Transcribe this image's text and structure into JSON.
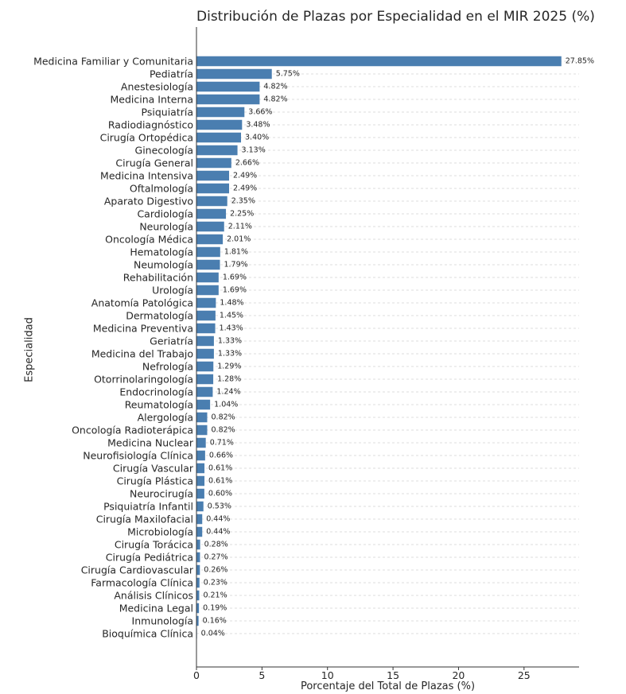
{
  "chart_data": {
    "type": "bar",
    "orientation": "horizontal",
    "title": "Distribución de Plazas por Especialidad en el MIR 2025 (%)",
    "xlabel": "Porcentaje del Total de Plazas (%)",
    "ylabel": "Especialidad",
    "xlim": [
      0,
      29.2
    ],
    "xticks": [
      0,
      5,
      10,
      15,
      20,
      25
    ],
    "grid": "horizontal dashed",
    "bar_color": "#4a7eb0",
    "categories": [
      "Medicina Familiar y Comunitaria",
      "Pediatría",
      "Anestesiología",
      "Medicina Interna",
      "Psiquiatría",
      "Radiodiagnóstico",
      "Cirugía Ortopédica",
      "Ginecología",
      "Cirugía General",
      "Medicina Intensiva",
      "Oftalmología",
      "Aparato Digestivo",
      "Cardiología",
      "Neurología",
      "Oncología Médica",
      "Hematología",
      "Neumología",
      "Rehabilitación",
      "Urología",
      "Anatomía Patológica",
      "Dermatología",
      "Medicina Preventiva",
      "Geriatría",
      "Medicina del Trabajo",
      "Nefrología",
      "Otorrinolaringología",
      "Endocrinología",
      "Reumatología",
      "Alergología",
      "Oncología Radioterápica",
      "Medicina Nuclear",
      "Neurofisiología Clínica",
      "Cirugía Vascular",
      "Cirugía Plástica",
      "Neurocirugía",
      "Psiquiatría Infantil",
      "Cirugía Maxilofacial",
      "Microbiología",
      "Cirugía Torácica",
      "Cirugía Pediátrica",
      "Cirugía Cardiovascular",
      "Farmacología Clínica",
      "Análisis Clínicos",
      "Medicina Legal",
      "Inmunología",
      "Bioquímica Clínica"
    ],
    "values": [
      27.85,
      5.75,
      4.82,
      4.82,
      3.66,
      3.48,
      3.4,
      3.13,
      2.66,
      2.49,
      2.49,
      2.35,
      2.25,
      2.11,
      2.01,
      1.81,
      1.79,
      1.69,
      1.69,
      1.48,
      1.45,
      1.43,
      1.33,
      1.33,
      1.29,
      1.28,
      1.24,
      1.04,
      0.82,
      0.82,
      0.71,
      0.66,
      0.61,
      0.61,
      0.6,
      0.53,
      0.44,
      0.44,
      0.28,
      0.27,
      0.26,
      0.23,
      0.21,
      0.19,
      0.16,
      0.04
    ],
    "value_labels": [
      "27.85%",
      "5.75%",
      "4.82%",
      "4.82%",
      "3.66%",
      "3.48%",
      "3.40%",
      "3.13%",
      "2.66%",
      "2.49%",
      "2.49%",
      "2.35%",
      "2.25%",
      "2.11%",
      "2.01%",
      "1.81%",
      "1.79%",
      "1.69%",
      "1.69%",
      "1.48%",
      "1.45%",
      "1.43%",
      "1.33%",
      "1.33%",
      "1.29%",
      "1.28%",
      "1.24%",
      "1.04%",
      "0.82%",
      "0.82%",
      "0.71%",
      "0.66%",
      "0.61%",
      "0.61%",
      "0.60%",
      "0.53%",
      "0.44%",
      "0.44%",
      "0.28%",
      "0.27%",
      "0.26%",
      "0.23%",
      "0.21%",
      "0.19%",
      "0.16%",
      "0.04%"
    ]
  }
}
